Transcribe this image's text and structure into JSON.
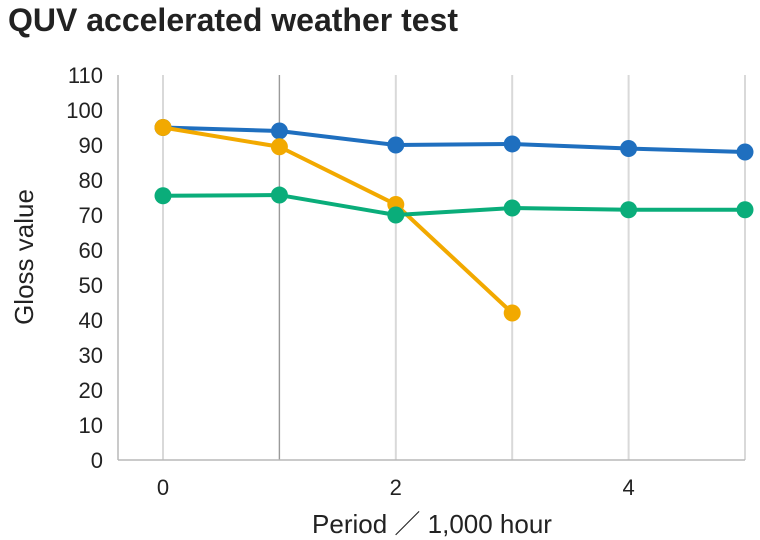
{
  "chart_data": {
    "type": "line",
    "title": "QUV accelerated weather test",
    "xlabel": "Period ／ 1,000 hour",
    "ylabel": "Gloss value",
    "xlim": [
      0,
      5
    ],
    "ylim": [
      0,
      110
    ],
    "x_ticks": [
      0,
      2,
      4
    ],
    "y_ticks": [
      0,
      10,
      20,
      30,
      40,
      50,
      60,
      70,
      80,
      90,
      100,
      110
    ],
    "grid": "vertical",
    "legend": "none",
    "series": [
      {
        "color": "#1f6fbf",
        "x": [
          0,
          1,
          2,
          3,
          4,
          5
        ],
        "values": [
          95,
          94,
          90,
          90.3,
          89,
          88
        ]
      },
      {
        "color": "#f2a900",
        "x": [
          0,
          1,
          2,
          3
        ],
        "values": [
          95,
          89.5,
          73,
          42
        ]
      },
      {
        "color": "#0aad7a",
        "x": [
          0,
          1,
          2,
          3,
          4,
          5
        ],
        "values": [
          75.5,
          75.7,
          70,
          72,
          71.5,
          71.5
        ]
      }
    ]
  }
}
